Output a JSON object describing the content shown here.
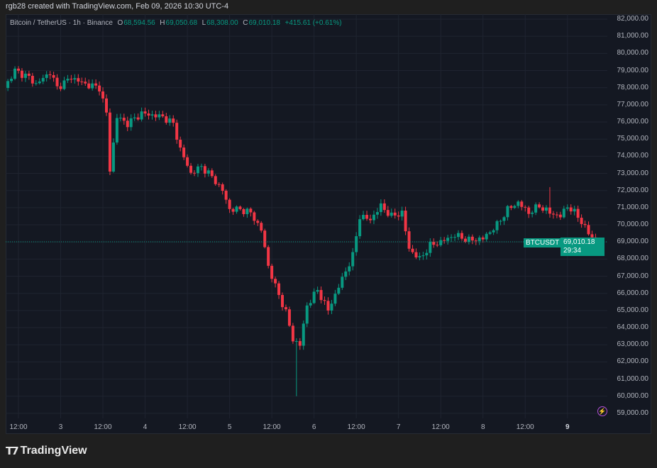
{
  "header": {
    "credit": "rgb28 created with TradingView.com, Feb 09, 2026 10:30 UTC-4"
  },
  "legend": {
    "symbol": "Bitcoin / TetherUS · 1h · Binance",
    "open_label": "O",
    "open": "68,594.56",
    "high_label": "H",
    "high": "69,050.68",
    "low_label": "L",
    "low": "68,308.00",
    "close_label": "C",
    "close": "69,010.18",
    "change": "+415.61 (+0.61%)"
  },
  "price_badge": {
    "symbol": "BTCUSDT",
    "price": "69,010.18",
    "countdown": "29:34"
  },
  "logo": {
    "mark": "TV",
    "text": "TradingView"
  },
  "colors": {
    "up": "#089981",
    "down": "#f23645",
    "background": "#141822",
    "grid": "#1f2430",
    "last_price": "#089981"
  },
  "chart_data": {
    "type": "candlestick",
    "interval": "1h",
    "last_price": 69010.18,
    "ylim": [
      58500,
      82500
    ],
    "y_ticks": [
      "82,000.00",
      "81,000.00",
      "80,000.00",
      "79,000.00",
      "78,000.00",
      "77,000.00",
      "76,000.00",
      "75,000.00",
      "74,000.00",
      "73,000.00",
      "72,000.00",
      "71,000.00",
      "70,000.00",
      "69,000.00",
      "68,000.00",
      "67,000.00",
      "66,000.00",
      "65,000.00",
      "64,000.00",
      "63,000.00",
      "62,000.00",
      "61,000.00",
      "60,000.00",
      "59,000.00"
    ],
    "x_ticks": [
      {
        "label": "12:00",
        "time": "02 12:00"
      },
      {
        "label": "3",
        "time": "03 00:00"
      },
      {
        "label": "12:00",
        "time": "03 12:00"
      },
      {
        "label": "4",
        "time": "04 00:00"
      },
      {
        "label": "12:00",
        "time": "04 12:00"
      },
      {
        "label": "5",
        "time": "05 00:00"
      },
      {
        "label": "12:00",
        "time": "05 12:00"
      },
      {
        "label": "6",
        "time": "06 00:00"
      },
      {
        "label": "12:00",
        "time": "06 12:00"
      },
      {
        "label": "7",
        "time": "07 00:00"
      },
      {
        "label": "12:00",
        "time": "07 12:00"
      },
      {
        "label": "8",
        "time": "08 00:00"
      },
      {
        "label": "12:00",
        "time": "08 12:00"
      },
      {
        "label": "9",
        "time": "09 00:00",
        "bold": true
      }
    ],
    "close_path": [
      [
        "02 08:00",
        78000
      ],
      [
        "02 11:00",
        79000
      ],
      [
        "02 15:00",
        78600
      ],
      [
        "02 17:00",
        78200
      ],
      [
        "02 21:00",
        78900
      ],
      [
        "02 23:00",
        78000
      ],
      [
        "03 03:00",
        78600
      ],
      [
        "03 07:00",
        78200
      ],
      [
        "03 11:00",
        78000
      ],
      [
        "03 13:00",
        76500
      ],
      [
        "03 14:00",
        73200
      ],
      [
        "03 16:00",
        76300
      ],
      [
        "03 19:00",
        75900
      ],
      [
        "03 23:00",
        76500
      ],
      [
        "04 05:00",
        76300
      ],
      [
        "04 08:00",
        75900
      ],
      [
        "04 10:00",
        74400
      ],
      [
        "04 13:00",
        73000
      ],
      [
        "04 16:00",
        73400
      ],
      [
        "04 19:00",
        72800
      ],
      [
        "04 22:00",
        72000
      ],
      [
        "05 00:00",
        70900
      ],
      [
        "05 03:00",
        70900
      ],
      [
        "05 06:00",
        70700
      ],
      [
        "05 09:00",
        69700
      ],
      [
        "05 11:00",
        67600
      ],
      [
        "05 13:00",
        66400
      ],
      [
        "05 16:00",
        64900
      ],
      [
        "05 18:00",
        63300
      ],
      [
        "05 20:00",
        63000
      ],
      [
        "05 22:00",
        65300
      ],
      [
        "06 01:00",
        66200
      ],
      [
        "06 04:00",
        65000
      ],
      [
        "06 07:00",
        66400
      ],
      [
        "06 11:00",
        68200
      ],
      [
        "06 13:00",
        70500
      ],
      [
        "06 16:00",
        70300
      ],
      [
        "06 19:00",
        71100
      ],
      [
        "06 22:00",
        70500
      ],
      [
        "07 01:00",
        70700
      ],
      [
        "07 03:00",
        68600
      ],
      [
        "07 06:00",
        68000
      ],
      [
        "07 09:00",
        68800
      ],
      [
        "07 12:00",
        69000
      ],
      [
        "07 16:00",
        69400
      ],
      [
        "07 20:00",
        69100
      ],
      [
        "08 00:00",
        69200
      ],
      [
        "08 04:00",
        70000
      ],
      [
        "08 07:00",
        70900
      ],
      [
        "08 10:00",
        71300
      ],
      [
        "08 13:00",
        70700
      ],
      [
        "08 16:00",
        71100
      ],
      [
        "08 19:00",
        70700
      ],
      [
        "08 22:00",
        70500
      ],
      [
        "09 00:00",
        71100
      ],
      [
        "09 03:00",
        70500
      ],
      [
        "09 06:00",
        69500
      ],
      [
        "09 09:00",
        68800
      ],
      [
        "09 10:00",
        69010
      ]
    ],
    "notable_wicks": [
      {
        "time": "05 19:00",
        "low": 60000
      },
      {
        "time": "03 14:00",
        "low": 72900
      },
      {
        "time": "08 19:00",
        "high": 72200
      }
    ]
  }
}
